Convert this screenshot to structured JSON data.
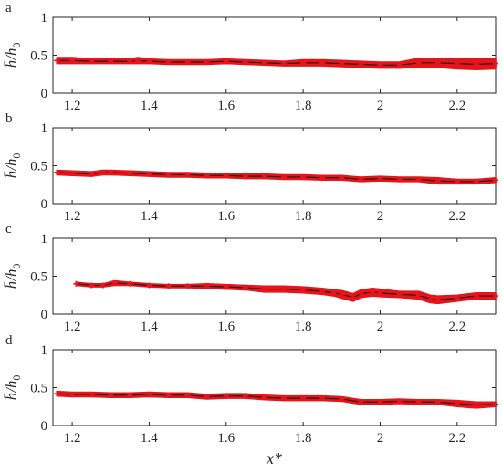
{
  "chart_data": [
    {
      "type": "line",
      "panel_label": "a",
      "ylabel": "h̄/h0",
      "xlabel": "",
      "xlim": [
        1.15,
        2.3
      ],
      "ylim": [
        0,
        1
      ],
      "xticks": [
        "1.2",
        "1.4",
        "1.6",
        "1.8",
        "2",
        "2.2"
      ],
      "xtick_values": [
        1.2,
        1.4,
        1.6,
        1.8,
        2.0,
        2.2
      ],
      "yticks": [
        "0",
        "0.5",
        "1"
      ],
      "ytick_values": [
        0,
        0.5,
        1
      ],
      "band_color": "#e8141a",
      "line_color": "#1a1a1a",
      "series": [
        {
          "x": [
            1.16,
            1.2,
            1.25,
            1.3,
            1.35,
            1.37,
            1.4,
            1.45,
            1.5,
            1.55,
            1.6,
            1.65,
            1.7,
            1.75,
            1.8,
            1.85,
            1.9,
            1.95,
            2.0,
            2.05,
            2.1,
            2.15,
            2.2,
            2.25,
            2.3
          ],
          "values": [
            0.43,
            0.43,
            0.42,
            0.42,
            0.42,
            0.43,
            0.42,
            0.41,
            0.41,
            0.41,
            0.42,
            0.41,
            0.4,
            0.39,
            0.4,
            0.4,
            0.39,
            0.38,
            0.37,
            0.37,
            0.4,
            0.4,
            0.39,
            0.38,
            0.39
          ],
          "band": [
            0.04,
            0.04,
            0.03,
            0.03,
            0.03,
            0.04,
            0.03,
            0.03,
            0.03,
            0.03,
            0.03,
            0.03,
            0.03,
            0.03,
            0.04,
            0.04,
            0.04,
            0.04,
            0.04,
            0.04,
            0.06,
            0.06,
            0.07,
            0.07,
            0.07
          ]
        }
      ]
    },
    {
      "type": "line",
      "panel_label": "b",
      "ylabel": "h̄/h0",
      "xlabel": "",
      "xlim": [
        1.15,
        2.3
      ],
      "ylim": [
        0,
        1
      ],
      "xticks": [
        "1.2",
        "1.4",
        "1.6",
        "1.8",
        "2",
        "2.2"
      ],
      "xtick_values": [
        1.2,
        1.4,
        1.6,
        1.8,
        2.0,
        2.2
      ],
      "yticks": [
        "0",
        "0.5",
        "1"
      ],
      "ytick_values": [
        0,
        0.5,
        1
      ],
      "band_color": "#e8141a",
      "line_color": "#1a1a1a",
      "series": [
        {
          "x": [
            1.16,
            1.2,
            1.25,
            1.28,
            1.3,
            1.35,
            1.4,
            1.45,
            1.5,
            1.55,
            1.6,
            1.65,
            1.7,
            1.75,
            1.8,
            1.85,
            1.9,
            1.95,
            2.0,
            2.05,
            2.1,
            2.15,
            2.2,
            2.25,
            2.3
          ],
          "values": [
            0.41,
            0.4,
            0.39,
            0.41,
            0.41,
            0.4,
            0.39,
            0.38,
            0.38,
            0.37,
            0.37,
            0.36,
            0.36,
            0.35,
            0.35,
            0.34,
            0.34,
            0.32,
            0.33,
            0.32,
            0.32,
            0.3,
            0.29,
            0.29,
            0.31
          ],
          "band": [
            0.03,
            0.03,
            0.03,
            0.03,
            0.03,
            0.03,
            0.03,
            0.03,
            0.03,
            0.03,
            0.03,
            0.03,
            0.03,
            0.03,
            0.03,
            0.03,
            0.03,
            0.03,
            0.03,
            0.03,
            0.03,
            0.04,
            0.03,
            0.03,
            0.03
          ]
        }
      ]
    },
    {
      "type": "line",
      "panel_label": "c",
      "ylabel": "h̄/h0",
      "xlabel": "",
      "xlim": [
        1.15,
        2.3
      ],
      "ylim": [
        0,
        1
      ],
      "xticks": [
        "1.2",
        "1.4",
        "1.6",
        "1.8",
        "2",
        "2.2"
      ],
      "xtick_values": [
        1.2,
        1.4,
        1.6,
        1.8,
        2.0,
        2.2
      ],
      "yticks": [
        "0",
        "0.5",
        "1"
      ],
      "ytick_values": [
        0,
        0.5,
        1
      ],
      "band_color": "#e8141a",
      "line_color": "#1a1a1a",
      "series": [
        {
          "x": [
            1.21,
            1.25,
            1.28,
            1.31,
            1.35,
            1.4,
            1.45,
            1.5,
            1.55,
            1.6,
            1.65,
            1.7,
            1.75,
            1.8,
            1.85,
            1.88,
            1.9,
            1.93,
            1.95,
            1.98,
            2.0,
            2.05,
            2.1,
            2.13,
            2.15,
            2.2,
            2.25,
            2.3
          ],
          "values": [
            0.4,
            0.38,
            0.38,
            0.41,
            0.4,
            0.38,
            0.37,
            0.37,
            0.37,
            0.36,
            0.35,
            0.33,
            0.33,
            0.32,
            0.3,
            0.28,
            0.26,
            0.22,
            0.27,
            0.29,
            0.28,
            0.26,
            0.25,
            0.2,
            0.19,
            0.21,
            0.24,
            0.24
          ],
          "band": [
            0.02,
            0.02,
            0.02,
            0.03,
            0.02,
            0.02,
            0.02,
            0.02,
            0.03,
            0.03,
            0.03,
            0.04,
            0.04,
            0.04,
            0.04,
            0.04,
            0.05,
            0.05,
            0.05,
            0.05,
            0.05,
            0.04,
            0.05,
            0.05,
            0.05,
            0.04,
            0.04,
            0.04
          ]
        }
      ]
    },
    {
      "type": "line",
      "panel_label": "d",
      "ylabel": "h̄/h0",
      "xlabel": "x*",
      "xlim": [
        1.15,
        2.3
      ],
      "ylim": [
        0,
        1
      ],
      "xticks": [
        "1.2",
        "1.4",
        "1.6",
        "1.8",
        "2",
        "2.2"
      ],
      "xtick_values": [
        1.2,
        1.4,
        1.6,
        1.8,
        2.0,
        2.2
      ],
      "yticks": [
        "0",
        "0.5",
        "1"
      ],
      "ytick_values": [
        0,
        0.5,
        1
      ],
      "band_color": "#e8141a",
      "line_color": "#1a1a1a",
      "series": [
        {
          "x": [
            1.16,
            1.2,
            1.25,
            1.3,
            1.35,
            1.4,
            1.45,
            1.5,
            1.55,
            1.6,
            1.65,
            1.7,
            1.75,
            1.8,
            1.85,
            1.9,
            1.95,
            2.0,
            2.05,
            2.1,
            2.15,
            2.2,
            2.25,
            2.3
          ],
          "values": [
            0.42,
            0.41,
            0.41,
            0.4,
            0.4,
            0.41,
            0.4,
            0.4,
            0.38,
            0.39,
            0.39,
            0.37,
            0.36,
            0.36,
            0.36,
            0.35,
            0.31,
            0.31,
            0.32,
            0.31,
            0.31,
            0.29,
            0.27,
            0.28
          ],
          "band": [
            0.03,
            0.03,
            0.03,
            0.03,
            0.03,
            0.03,
            0.03,
            0.03,
            0.03,
            0.03,
            0.03,
            0.03,
            0.03,
            0.03,
            0.03,
            0.03,
            0.03,
            0.03,
            0.03,
            0.03,
            0.03,
            0.04,
            0.04,
            0.03
          ]
        }
      ]
    }
  ]
}
